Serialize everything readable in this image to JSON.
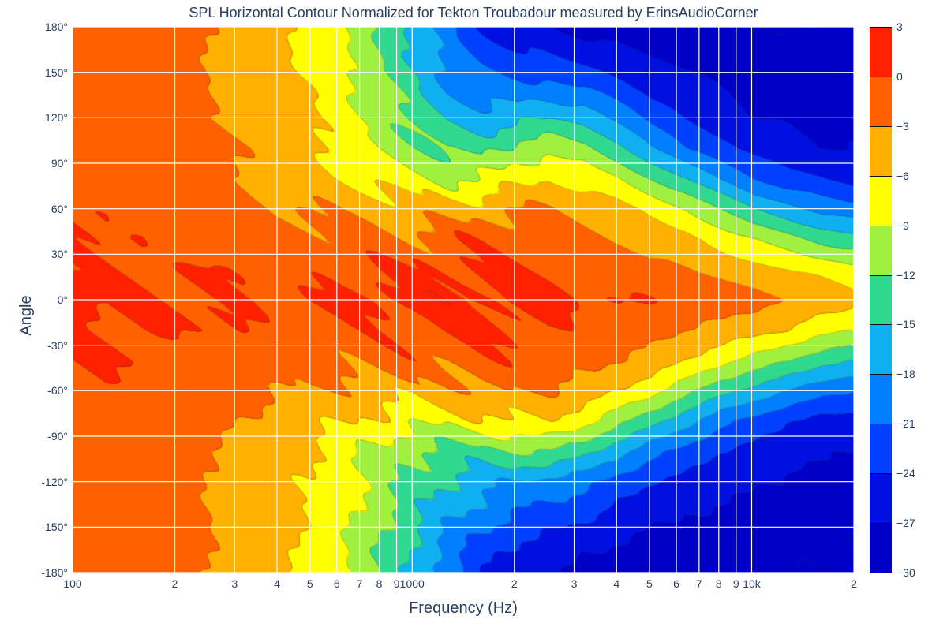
{
  "title": "SPL Horizontal Contour Normalized for Tekton Troubadour measured by ErinsAudioCorner",
  "xlabel": "Frequency (Hz)",
  "ylabel": "Angle",
  "title_fontsize": 18,
  "label_fontsize": 20,
  "tick_fontsize": 14,
  "text_color": "#2a3f5f",
  "background_color": "#ffffff",
  "grid_color": "#ffffff",
  "chart": {
    "type": "contour-heatmap",
    "x_axis": {
      "scale": "log",
      "min": 100,
      "max": 20000,
      "unit": "Hz"
    },
    "y_axis": {
      "scale": "linear",
      "min": -180,
      "max": 180,
      "step": 30,
      "unit": "degrees"
    },
    "z_axis": {
      "min": -30,
      "max": 3,
      "step": 3,
      "unit": "dB"
    },
    "x_major_ticks": [
      {
        "value": 100,
        "label": "100"
      },
      {
        "value": 1000,
        "label": "1000"
      },
      {
        "value": 10000,
        "label": "10k"
      }
    ],
    "x_minor_ticks": [
      {
        "value": 200,
        "label": "2"
      },
      {
        "value": 300,
        "label": "3"
      },
      {
        "value": 400,
        "label": "4"
      },
      {
        "value": 500,
        "label": "5"
      },
      {
        "value": 600,
        "label": "6"
      },
      {
        "value": 700,
        "label": "7"
      },
      {
        "value": 800,
        "label": "8"
      },
      {
        "value": 900,
        "label": "9"
      },
      {
        "value": 2000,
        "label": "2"
      },
      {
        "value": 3000,
        "label": "3"
      },
      {
        "value": 4000,
        "label": "4"
      },
      {
        "value": 5000,
        "label": "5"
      },
      {
        "value": 6000,
        "label": "6"
      },
      {
        "value": 7000,
        "label": "7"
      },
      {
        "value": 8000,
        "label": "8"
      },
      {
        "value": 9000,
        "label": "9"
      },
      {
        "value": 20000,
        "label": "2"
      }
    ],
    "y_ticks": [
      {
        "value": -180,
        "label": "-180°"
      },
      {
        "value": -150,
        "label": "-150°"
      },
      {
        "value": -120,
        "label": "-120°"
      },
      {
        "value": -90,
        "label": "-90°"
      },
      {
        "value": -60,
        "label": "-60°"
      },
      {
        "value": -30,
        "label": "-30°"
      },
      {
        "value": 0,
        "label": "0°"
      },
      {
        "value": 30,
        "label": "30°"
      },
      {
        "value": 60,
        "label": "60°"
      },
      {
        "value": 90,
        "label": "90°"
      },
      {
        "value": 120,
        "label": "120°"
      },
      {
        "value": 150,
        "label": "150°"
      },
      {
        "value": 180,
        "label": "180°"
      }
    ],
    "colorbar": {
      "levels": [
        -30,
        -27,
        -24,
        -21,
        -18,
        -15,
        -12,
        -9,
        -6,
        -3,
        0,
        3
      ],
      "colors": {
        "-30": "#0000c8",
        "-27": "#0010e0",
        "-24": "#0040ff",
        "-21": "#0080ff",
        "-18": "#10b0f0",
        "-15": "#30d890",
        "-12": "#a0f040",
        "-9": "#ffff00",
        "-6": "#ffb000",
        "-3": "#ff6000",
        "0": "#ff2000",
        "3": "#d01000"
      },
      "tick_labels": [
        "3",
        "0",
        "−3",
        "−6",
        "−9",
        "−12",
        "−15",
        "−18",
        "−21",
        "−24",
        "−27",
        "−30"
      ],
      "tick_values": [
        3,
        0,
        -3,
        -6,
        -9,
        -12,
        -15,
        -18,
        -21,
        -24,
        -27,
        -30
      ]
    },
    "contour_line_color": "#303030",
    "contour_line_width": 0.6,
    "angles_deg": [
      -180,
      -160,
      -140,
      -120,
      -100,
      -80,
      -60,
      -40,
      -20,
      0,
      20,
      40,
      60,
      80,
      100,
      120,
      140,
      160,
      180
    ],
    "freqs_hz": [
      100,
      126,
      159,
      200,
      252,
      317,
      400,
      504,
      635,
      800,
      1008,
      1270,
      1600,
      2016,
      2540,
      3200,
      4032,
      5080,
      6400,
      8063,
      10159,
      12800,
      16127,
      20000
    ],
    "z_db": [
      [
        -1,
        -1,
        -2,
        -2,
        -3,
        -4,
        -5,
        -7,
        -9,
        -12,
        -16,
        -20,
        -24,
        -26,
        -27,
        -28,
        -28,
        -29,
        -29,
        -29,
        -30,
        -30,
        -30,
        -30
      ],
      [
        -1,
        -1,
        -2,
        -2,
        -3,
        -4,
        -5,
        -7,
        -9,
        -12,
        -15,
        -19,
        -22,
        -24,
        -25,
        -26,
        -27,
        -28,
        -28,
        -29,
        -29,
        -29,
        -30,
        -30
      ],
      [
        -1,
        -1,
        -1,
        -2,
        -3,
        -4,
        -5,
        -6,
        -8,
        -11,
        -14,
        -17,
        -19,
        -21,
        -22,
        -23,
        -25,
        -26,
        -27,
        -27,
        -28,
        -28,
        -29,
        -29
      ],
      [
        -1,
        -1,
        -1,
        -2,
        -3,
        -4,
        -5,
        -6,
        -8,
        -10,
        -13,
        -15,
        -17,
        -18,
        -19,
        -20,
        -22,
        -24,
        -25,
        -26,
        -27,
        -27,
        -28,
        -28
      ],
      [
        -1,
        -1,
        -1,
        -2,
        -3,
        -4,
        -5,
        -6,
        -8,
        -10,
        -12,
        -13,
        -13,
        -12,
        -12,
        -14,
        -17,
        -20,
        -22,
        -24,
        -25,
        -26,
        -27,
        -27
      ],
      [
        -1,
        -1,
        -1,
        -2,
        -2,
        -3,
        -4,
        -5,
        -6,
        -7,
        -8,
        -8,
        -7,
        -6,
        -6,
        -8,
        -11,
        -14,
        -17,
        -20,
        -22,
        -24,
        -25,
        -25
      ],
      [
        0,
        0,
        -1,
        -1,
        -2,
        -2,
        -3,
        -3,
        -4,
        -4,
        -5,
        -4,
        -3,
        -3,
        -3,
        -4,
        -6,
        -8,
        -11,
        -14,
        -16,
        -18,
        -20,
        -21
      ],
      [
        0,
        0,
        0,
        -1,
        -1,
        -1,
        -2,
        -2,
        -2,
        -2,
        -2,
        -2,
        -1,
        -1,
        -1,
        -2,
        -3,
        -4,
        -6,
        -8,
        -10,
        -12,
        -14,
        -15
      ],
      [
        0,
        0,
        0,
        0,
        0,
        0,
        -1,
        -1,
        -1,
        -1,
        -1,
        0,
        0,
        0,
        0,
        -1,
        -1,
        -2,
        -3,
        -4,
        -5,
        -6,
        -8,
        -9
      ],
      [
        1,
        0,
        0,
        0,
        0,
        0,
        0,
        0,
        0,
        1,
        1,
        1,
        1,
        1,
        1,
        0,
        0,
        0,
        -1,
        -1,
        -2,
        -3,
        -4,
        -5
      ],
      [
        0,
        0,
        0,
        0,
        0,
        0,
        -1,
        -1,
        -1,
        0,
        0,
        0,
        0,
        0,
        0,
        -1,
        -1,
        -2,
        -3,
        -4,
        -5,
        -6,
        -7,
        -8
      ],
      [
        0,
        0,
        0,
        -1,
        -1,
        -1,
        -2,
        -2,
        -2,
        -2,
        -2,
        -1,
        -1,
        -1,
        -1,
        -2,
        -3,
        -4,
        -5,
        -7,
        -9,
        -11,
        -13,
        -14
      ],
      [
        0,
        0,
        -1,
        -1,
        -2,
        -2,
        -3,
        -3,
        -4,
        -4,
        -5,
        -5,
        -4,
        -3,
        -3,
        -4,
        -5,
        -7,
        -9,
        -12,
        -15,
        -17,
        -19,
        -20
      ],
      [
        -1,
        -1,
        -1,
        -2,
        -2,
        -3,
        -4,
        -5,
        -6,
        -7,
        -8,
        -9,
        -9,
        -7,
        -6,
        -7,
        -9,
        -12,
        -15,
        -18,
        -21,
        -23,
        -24,
        -25
      ],
      [
        -1,
        -1,
        -1,
        -2,
        -2,
        -3,
        -4,
        -5,
        -7,
        -9,
        -11,
        -13,
        -13,
        -11,
        -10,
        -11,
        -14,
        -18,
        -21,
        -23,
        -25,
        -26,
        -27,
        -27
      ],
      [
        -1,
        -1,
        -1,
        -2,
        -3,
        -4,
        -5,
        -6,
        -8,
        -10,
        -13,
        -16,
        -17,
        -16,
        -15,
        -16,
        -19,
        -22,
        -24,
        -26,
        -27,
        -27,
        -28,
        -28
      ],
      [
        -1,
        -1,
        -1,
        -2,
        -3,
        -4,
        -5,
        -6,
        -8,
        -11,
        -14,
        -18,
        -20,
        -20,
        -20,
        -21,
        -23,
        -25,
        -26,
        -27,
        -28,
        -28,
        -29,
        -29
      ],
      [
        -1,
        -1,
        -2,
        -2,
        -3,
        -4,
        -5,
        -7,
        -9,
        -12,
        -15,
        -19,
        -22,
        -23,
        -24,
        -25,
        -26,
        -27,
        -28,
        -28,
        -29,
        -29,
        -29,
        -30
      ],
      [
        -1,
        -1,
        -2,
        -2,
        -3,
        -4,
        -5,
        -7,
        -9,
        -12,
        -16,
        -20,
        -24,
        -26,
        -27,
        -28,
        -28,
        -29,
        -29,
        -29,
        -30,
        -30,
        -30,
        -30
      ]
    ]
  }
}
